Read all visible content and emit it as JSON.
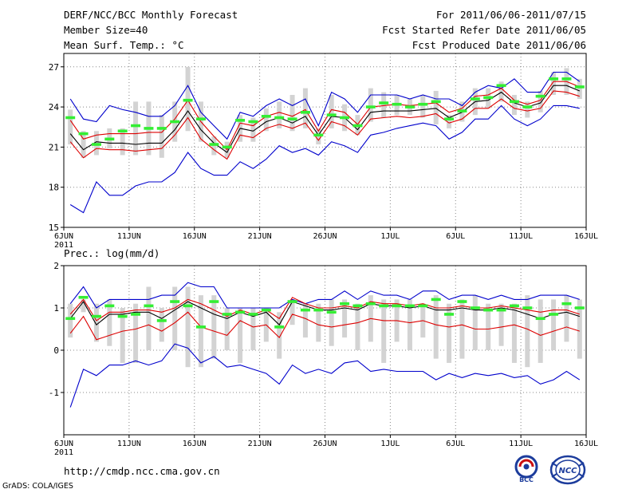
{
  "header": {
    "title": "DERF/NCC/BCC Monthly Forecast",
    "member_size": "Member Size=40",
    "variable_top": "Mean Surf. Temp.: °C",
    "period": "For 2011/06/06-2011/07/15",
    "started": "Fcst Started Refer Date 2011/06/05",
    "produced": "Fcst Produced Date 2011/06/06"
  },
  "footer": {
    "url": "http://cmdp.ncc.cma.gov.cn",
    "credit": "GrADS: COLA/IGES",
    "logo_left_text": "BCC",
    "logo_right_text": "NCC"
  },
  "colors": {
    "max_min": "#0000cc",
    "spread": "#dd0000",
    "mean": "#000000",
    "observed": "#33ee33",
    "box": "#d3d3d3",
    "grid": "#888888"
  },
  "chart_data": [
    {
      "type": "line",
      "title": "Mean Surf. Temp.: °C",
      "xlabel": "",
      "ylabel": "Mean Surf. Temp. (°C)",
      "ylim": [
        15,
        28
      ],
      "yticks": [
        15,
        18,
        21,
        24,
        27
      ],
      "xlim": [
        0,
        40
      ],
      "xticks": [
        {
          "x": 0,
          "label": "6JUN",
          "sub": "2011"
        },
        {
          "x": 5,
          "label": "11JUN"
        },
        {
          "x": 10,
          "label": "16JUN"
        },
        {
          "x": 15,
          "label": "21JUN"
        },
        {
          "x": 20,
          "label": "26JUN"
        },
        {
          "x": 25,
          "label": "1JUL"
        },
        {
          "x": 30,
          "label": "6JUL"
        },
        {
          "x": 35,
          "label": "11JUL"
        },
        {
          "x": 40,
          "label": "16JUL"
        }
      ],
      "grid": true,
      "days": [
        0,
        1,
        2,
        3,
        4,
        5,
        6,
        7,
        8,
        9,
        10,
        11,
        12,
        13,
        14,
        15,
        16,
        17,
        18,
        19,
        20,
        21,
        22,
        23,
        24,
        25,
        26,
        27,
        28,
        29,
        30,
        31,
        32,
        33,
        34,
        35,
        36,
        37,
        38,
        39
      ],
      "series": [
        {
          "name": "max",
          "color": "#0000cc",
          "values": [
            24.6,
            23.1,
            22.9,
            24.1,
            23.8,
            23.6,
            23.3,
            23.3,
            24.1,
            25.6,
            23.6,
            22.6,
            21.6,
            23.6,
            23.3,
            24.1,
            24.6,
            24.1,
            24.6,
            22.6,
            25.1,
            24.6,
            23.6,
            24.9,
            24.9,
            24.9,
            24.6,
            24.9,
            24.6,
            24.6,
            24.1,
            25.1,
            25.6,
            25.4,
            26.1,
            25.1,
            25.1,
            26.6,
            26.6,
            25.9
          ]
        },
        {
          "name": "spread_upper",
          "color": "#dd0000",
          "values": [
            23.0,
            21.6,
            21.9,
            22.0,
            22.0,
            22.0,
            22.1,
            22.1,
            23.1,
            24.5,
            22.9,
            21.8,
            20.8,
            22.8,
            22.6,
            23.3,
            23.6,
            23.3,
            23.8,
            22.2,
            23.8,
            23.6,
            22.7,
            24.0,
            24.1,
            24.2,
            24.1,
            24.2,
            24.3,
            23.6,
            23.9,
            24.8,
            24.9,
            25.4,
            24.5,
            24.2,
            24.5,
            25.9,
            25.9,
            25.5
          ]
        },
        {
          "name": "mean",
          "color": "#000000",
          "values": [
            22.0,
            20.8,
            21.4,
            21.3,
            21.3,
            21.2,
            21.3,
            21.3,
            22.3,
            23.7,
            22.3,
            21.3,
            20.6,
            22.4,
            22.2,
            22.9,
            23.2,
            22.8,
            23.3,
            21.9,
            23.3,
            23.2,
            22.3,
            23.6,
            23.7,
            23.7,
            23.7,
            23.8,
            23.9,
            23.2,
            23.6,
            24.4,
            24.5,
            25.1,
            24.3,
            24.0,
            24.3,
            25.6,
            25.6,
            25.2
          ]
        },
        {
          "name": "spread_lower",
          "color": "#dd0000",
          "values": [
            21.4,
            20.2,
            20.9,
            20.8,
            20.8,
            20.7,
            20.8,
            20.9,
            21.9,
            23.2,
            21.6,
            20.8,
            20.1,
            21.9,
            21.7,
            22.4,
            22.7,
            22.4,
            22.8,
            21.5,
            22.9,
            22.6,
            21.9,
            23.1,
            23.2,
            23.3,
            23.2,
            23.3,
            23.5,
            22.8,
            23.1,
            23.9,
            23.9,
            24.6,
            23.9,
            23.7,
            23.9,
            25.2,
            25.1,
            24.8
          ]
        },
        {
          "name": "min",
          "color": "#0000cc",
          "values": [
            16.7,
            16.1,
            18.4,
            17.4,
            17.4,
            18.1,
            18.4,
            18.4,
            19.1,
            20.6,
            19.4,
            18.9,
            18.9,
            19.9,
            19.4,
            20.1,
            21.1,
            20.6,
            20.9,
            20.4,
            21.4,
            21.1,
            20.6,
            21.9,
            22.1,
            22.4,
            22.6,
            22.8,
            22.6,
            21.6,
            22.1,
            23.1,
            23.1,
            24.1,
            23.1,
            22.6,
            23.1,
            24.1,
            24.1,
            23.9
          ]
        },
        {
          "name": "observed",
          "color": "#33ee33",
          "values": [
            23.2,
            22.0,
            21.2,
            21.6,
            22.2,
            22.6,
            22.4,
            22.4,
            22.9,
            24.5,
            23.1,
            21.2,
            21.0,
            23.0,
            22.9,
            23.3,
            23.2,
            23.1,
            23.6,
            21.9,
            23.4,
            23.2,
            22.6,
            24.0,
            24.3,
            24.2,
            24.0,
            24.2,
            24.4,
            23.1,
            23.7,
            24.6,
            24.7,
            25.6,
            24.4,
            24.0,
            24.8,
            26.1,
            26.1,
            25.5
          ]
        },
        {
          "name": "box_high",
          "color": "#d3d3d3",
          "values": [
            23.8,
            22.2,
            22.2,
            22.4,
            22.4,
            24.4,
            24.4,
            23.4,
            24.4,
            27.0,
            24.4,
            21.8,
            21.4,
            23.4,
            23.2,
            23.9,
            24.4,
            24.9,
            25.4,
            22.4,
            24.9,
            24.2,
            23.4,
            25.4,
            25.1,
            24.9,
            24.6,
            24.9,
            25.2,
            23.4,
            24.4,
            25.4,
            25.4,
            25.9,
            24.9,
            24.4,
            25.2,
            26.6,
            26.9,
            26.1
          ]
        },
        {
          "name": "box_low",
          "color": "#d3d3d3",
          "values": [
            21.2,
            20.2,
            20.4,
            20.9,
            20.4,
            20.4,
            20.4,
            20.2,
            21.4,
            22.2,
            21.4,
            20.4,
            20.2,
            21.4,
            21.4,
            22.2,
            22.4,
            22.2,
            22.4,
            21.2,
            22.4,
            22.2,
            21.9,
            22.9,
            23.2,
            23.4,
            23.4,
            23.2,
            22.7,
            22.4,
            22.9,
            23.4,
            23.9,
            24.4,
            23.4,
            23.2,
            23.6,
            24.9,
            24.9,
            24.6
          ]
        }
      ]
    },
    {
      "type": "line",
      "title": "Prec.: log(mm/d)",
      "xlabel": "",
      "ylabel": "Prec.: log(mm/d)",
      "ylim": [
        -2,
        2
      ],
      "yticks": [
        -1,
        0,
        1,
        2
      ],
      "xlim": [
        0,
        40
      ],
      "xticks": [
        {
          "x": 0,
          "label": "6JUN",
          "sub": "2011"
        },
        {
          "x": 5,
          "label": "11JUN"
        },
        {
          "x": 10,
          "label": "16JUN"
        },
        {
          "x": 15,
          "label": "21JUN"
        },
        {
          "x": 20,
          "label": "26JUN"
        },
        {
          "x": 25,
          "label": "1JUL"
        },
        {
          "x": 30,
          "label": "6JUL"
        },
        {
          "x": 35,
          "label": "11JUL"
        },
        {
          "x": 40,
          "label": "16JUL"
        }
      ],
      "grid": true,
      "days": [
        0,
        1,
        2,
        3,
        4,
        5,
        6,
        7,
        8,
        9,
        10,
        11,
        12,
        13,
        14,
        15,
        16,
        17,
        18,
        19,
        20,
        21,
        22,
        23,
        24,
        25,
        26,
        27,
        28,
        29,
        30,
        31,
        32,
        33,
        34,
        35,
        36,
        37,
        38,
        39
      ],
      "series": [
        {
          "name": "max",
          "color": "#0000cc",
          "values": [
            1.1,
            1.5,
            1.0,
            1.2,
            1.2,
            1.2,
            1.2,
            1.3,
            1.3,
            1.6,
            1.5,
            1.5,
            1.0,
            1.0,
            1.0,
            1.0,
            1.0,
            1.2,
            1.1,
            1.2,
            1.2,
            1.4,
            1.2,
            1.4,
            1.3,
            1.3,
            1.2,
            1.4,
            1.4,
            1.2,
            1.3,
            1.3,
            1.2,
            1.3,
            1.2,
            1.2,
            1.3,
            1.3,
            1.3,
            1.2
          ]
        },
        {
          "name": "spread_upper",
          "color": "#dd0000",
          "values": [
            0.85,
            1.2,
            0.7,
            0.9,
            0.9,
            0.95,
            0.95,
            0.9,
            1.0,
            1.2,
            1.1,
            0.95,
            0.8,
            0.95,
            0.85,
            0.95,
            0.75,
            1.25,
            1.1,
            1.0,
            1.0,
            1.05,
            1.0,
            1.15,
            1.1,
            1.1,
            1.05,
            1.1,
            1.0,
            1.0,
            1.05,
            1.0,
            1.0,
            1.05,
            1.0,
            0.95,
            0.9,
            0.95,
            0.95,
            0.85
          ]
        },
        {
          "name": "mean",
          "color": "#000000",
          "values": [
            0.75,
            1.15,
            0.6,
            0.85,
            0.85,
            0.9,
            0.9,
            0.75,
            0.95,
            1.15,
            1.0,
            0.85,
            0.75,
            0.9,
            0.8,
            0.9,
            0.6,
            1.15,
            1.05,
            0.95,
            0.95,
            1.0,
            0.95,
            1.1,
            1.05,
            1.05,
            1.0,
            1.05,
            0.95,
            0.95,
            1.0,
            0.95,
            0.95,
            1.0,
            0.95,
            0.85,
            0.75,
            0.85,
            0.9,
            0.8
          ]
        },
        {
          "name": "spread_lower",
          "color": "#dd0000",
          "values": [
            0.4,
            0.8,
            0.25,
            0.35,
            0.45,
            0.5,
            0.6,
            0.45,
            0.65,
            0.9,
            0.55,
            0.45,
            0.35,
            0.7,
            0.55,
            0.6,
            0.3,
            0.85,
            0.75,
            0.6,
            0.55,
            0.6,
            0.65,
            0.75,
            0.7,
            0.7,
            0.65,
            0.7,
            0.6,
            0.55,
            0.6,
            0.5,
            0.5,
            0.55,
            0.6,
            0.5,
            0.35,
            0.45,
            0.55,
            0.45
          ]
        },
        {
          "name": "min",
          "color": "#0000cc",
          "values": [
            -1.35,
            -0.45,
            -0.6,
            -0.35,
            -0.35,
            -0.25,
            -0.35,
            -0.25,
            0.15,
            0.05,
            -0.3,
            -0.15,
            -0.4,
            -0.35,
            -0.45,
            -0.55,
            -0.8,
            -0.35,
            -0.55,
            -0.45,
            -0.55,
            -0.3,
            -0.25,
            -0.5,
            -0.45,
            -0.5,
            -0.5,
            -0.5,
            -0.7,
            -0.55,
            -0.65,
            -0.55,
            -0.6,
            -0.55,
            -0.65,
            -0.6,
            -0.8,
            -0.7,
            -0.5,
            -0.7
          ]
        },
        {
          "name": "observed",
          "color": "#33ee33",
          "values": [
            0.75,
            1.25,
            0.8,
            1.05,
            0.8,
            0.85,
            1.05,
            0.7,
            1.15,
            1.05,
            0.55,
            1.15,
            0.85,
            0.9,
            0.85,
            0.95,
            0.55,
            1.15,
            0.95,
            0.95,
            0.9,
            1.1,
            1.05,
            1.1,
            1.05,
            1.05,
            1.05,
            1.05,
            1.2,
            0.85,
            1.15,
            1.0,
            0.95,
            0.95,
            1.05,
            1.0,
            0.75,
            0.85,
            1.1,
            1.0
          ]
        },
        {
          "name": "box_high",
          "color": "#d3d3d3",
          "values": [
            1.1,
            1.2,
            1.1,
            1.2,
            1.0,
            1.1,
            1.5,
            1.0,
            1.5,
            1.5,
            1.3,
            1.3,
            1.0,
            1.0,
            1.0,
            1.0,
            0.9,
            1.2,
            1.1,
            1.1,
            1.2,
            1.2,
            1.1,
            1.3,
            1.2,
            1.2,
            1.2,
            1.1,
            1.3,
            1.1,
            1.2,
            1.3,
            1.1,
            1.1,
            1.1,
            1.3,
            1.2,
            1.2,
            1.3,
            1.2
          ]
        },
        {
          "name": "box_low",
          "color": "#d3d3d3",
          "values": [
            0.3,
            0.9,
            0.2,
            0.1,
            -0.3,
            -0.3,
            0.0,
            0.2,
            0.0,
            -0.4,
            -0.4,
            -0.2,
            0.0,
            -0.3,
            0.0,
            0.2,
            -0.2,
            0.6,
            0.3,
            0.2,
            0.1,
            0.3,
            0.0,
            0.2,
            -0.3,
            0.2,
            0.0,
            0.3,
            -0.2,
            -0.3,
            -0.2,
            0.0,
            0.0,
            0.1,
            -0.3,
            -0.4,
            -0.3,
            0.0,
            0.2,
            -0.2
          ]
        }
      ]
    }
  ]
}
